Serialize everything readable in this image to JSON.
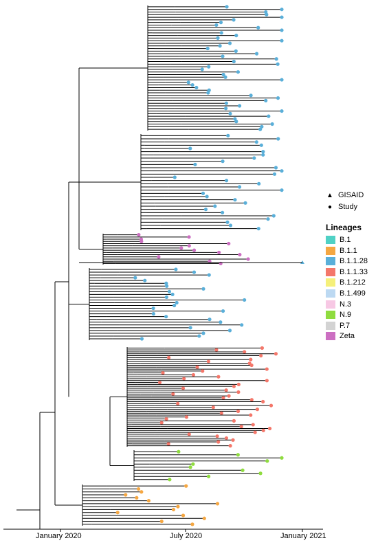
{
  "axis": {
    "ticks": [
      {
        "label": "January 2020"
      },
      {
        "label": "July 2020"
      },
      {
        "label": "January 2021"
      }
    ]
  },
  "shape_legend": [
    {
      "symbol": "▲",
      "label": "GISAID"
    },
    {
      "symbol": "●",
      "label": "Study"
    }
  ],
  "lineage_legend": {
    "title": "Lineages",
    "items": [
      {
        "label": "B.1",
        "color": "#4fd1c5"
      },
      {
        "label": "B.1.1",
        "color": "#f5a742"
      },
      {
        "label": "B.1.1.28",
        "color": "#5aafd9"
      },
      {
        "label": "B.1.1.33",
        "color": "#f4776a"
      },
      {
        "label": "B.1.212",
        "color": "#f5f07a"
      },
      {
        "label": "B.1.499",
        "color": "#bcd9f2"
      },
      {
        "label": "N.3",
        "color": "#f7c8e4"
      },
      {
        "label": "N.9",
        "color": "#8fdc3f"
      },
      {
        "label": "P.7",
        "color": "#d3d3d3"
      },
      {
        "label": "Zeta",
        "color": "#cc6fc2"
      }
    ]
  },
  "clades": [
    {
      "lineage": "B.1.1.28",
      "tips": 48
    },
    {
      "lineage": "B.1.1.28",
      "tips": 30
    },
    {
      "lineage": "Zeta",
      "tips": 14
    },
    {
      "lineage": "B.1.1.28",
      "tips": 26
    },
    {
      "lineage": "B.1.1.33",
      "tips": 52
    },
    {
      "lineage": "N.9",
      "tips": 10
    },
    {
      "lineage": "B.1.1",
      "tips": 14
    }
  ]
}
